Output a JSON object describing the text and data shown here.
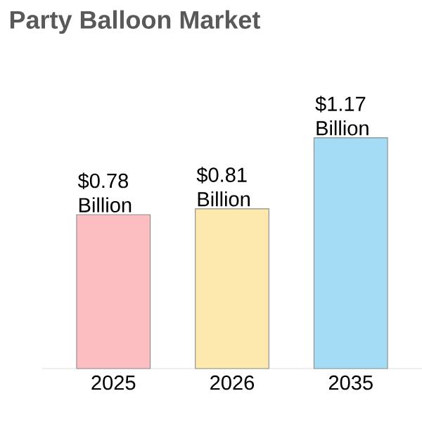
{
  "chart_data": {
    "type": "bar",
    "title": "Party Balloon Market",
    "categories": [
      "2025",
      "2026",
      "2035"
    ],
    "values": [
      0.78,
      0.81,
      1.17
    ],
    "colors": [
      "#fdbec2",
      "#fde8ae",
      "#a3dcf4"
    ],
    "value_labels": [
      "$0.78 Billion",
      "$0.81 Billion",
      "$1.17 Billion"
    ]
  }
}
